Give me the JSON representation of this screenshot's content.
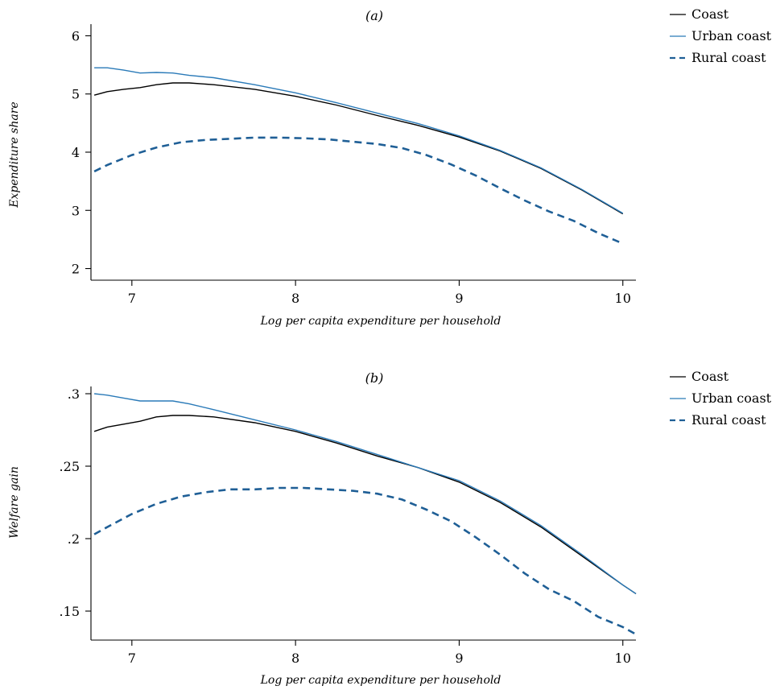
{
  "chart_data": [
    {
      "type": "line",
      "title": "(a)",
      "xlabel": "Log per capita expenditure per household",
      "ylabel": "Expenditure share",
      "xlim": [
        6.75,
        10.08
      ],
      "ylim": [
        1.8,
        6.2
      ],
      "xticks": [
        7,
        8,
        9,
        10
      ],
      "yticks": [
        2,
        3,
        4,
        5,
        6
      ],
      "ytick_labels": [
        "2",
        "3",
        "4",
        "5",
        "6"
      ],
      "grid": false,
      "legend_position": "right",
      "series": [
        {
          "name": "Coast",
          "color": "#000000",
          "style": "solid",
          "x": [
            6.77,
            6.85,
            6.95,
            7.05,
            7.15,
            7.25,
            7.35,
            7.5,
            7.75,
            8.0,
            8.25,
            8.5,
            8.75,
            9.0,
            9.25,
            9.5,
            9.75,
            10.0
          ],
          "y": [
            4.98,
            5.04,
            5.08,
            5.11,
            5.16,
            5.19,
            5.19,
            5.16,
            5.08,
            4.96,
            4.81,
            4.63,
            4.46,
            4.26,
            4.02,
            3.72,
            3.35,
            2.94
          ]
        },
        {
          "name": "Urban coast",
          "color": "#2a7ab8",
          "style": "solid",
          "x": [
            6.77,
            6.85,
            6.95,
            7.05,
            7.15,
            7.25,
            7.35,
            7.5,
            7.75,
            8.0,
            8.25,
            8.5,
            8.75,
            9.0,
            9.25,
            9.5,
            9.75,
            10.0
          ],
          "y": [
            5.45,
            5.45,
            5.41,
            5.36,
            5.37,
            5.36,
            5.32,
            5.28,
            5.16,
            5.02,
            4.85,
            4.67,
            4.49,
            4.28,
            4.03,
            3.73,
            3.36,
            2.95
          ]
        },
        {
          "name": "Rural coast",
          "color": "#1f5f96",
          "style": "dashed",
          "x": [
            6.77,
            6.85,
            7.0,
            7.15,
            7.3,
            7.45,
            7.6,
            7.75,
            7.9,
            8.05,
            8.2,
            8.35,
            8.5,
            8.65,
            8.8,
            8.95,
            9.1,
            9.25,
            9.4,
            9.55,
            9.7,
            9.85,
            10.0
          ],
          "y": [
            3.67,
            3.78,
            3.95,
            4.08,
            4.17,
            4.21,
            4.23,
            4.25,
            4.25,
            4.24,
            4.22,
            4.18,
            4.14,
            4.07,
            3.95,
            3.79,
            3.6,
            3.38,
            3.17,
            2.98,
            2.82,
            2.61,
            2.43
          ]
        }
      ]
    },
    {
      "type": "line",
      "title": "(b)",
      "xlabel": "Log per capita expenditure per household",
      "ylabel": "Welfare gain",
      "xlim": [
        6.75,
        10.08
      ],
      "ylim": [
        0.13,
        0.305
      ],
      "xticks": [
        7,
        8,
        9,
        10
      ],
      "yticks": [
        0.15,
        0.2,
        0.25,
        0.3
      ],
      "ytick_labels": [
        ".15",
        ".2",
        ".25",
        ".3"
      ],
      "grid": false,
      "legend_position": "right",
      "series": [
        {
          "name": "Coast",
          "color": "#000000",
          "style": "solid",
          "x": [
            6.77,
            6.85,
            6.95,
            7.05,
            7.15,
            7.25,
            7.35,
            7.5,
            7.75,
            8.0,
            8.25,
            8.5,
            8.75,
            9.0,
            9.25,
            9.5,
            9.75,
            10.0,
            10.08
          ],
          "y": [
            0.274,
            0.277,
            0.279,
            0.281,
            0.284,
            0.285,
            0.285,
            0.284,
            0.28,
            0.274,
            0.266,
            0.257,
            0.249,
            0.239,
            0.225,
            0.208,
            0.188,
            0.168,
            0.162
          ]
        },
        {
          "name": "Urban coast",
          "color": "#2a7ab8",
          "style": "solid",
          "x": [
            6.77,
            6.85,
            6.95,
            7.05,
            7.15,
            7.25,
            7.35,
            7.5,
            7.75,
            8.0,
            8.25,
            8.5,
            8.75,
            9.0,
            9.25,
            9.5,
            9.75,
            10.0,
            10.08
          ],
          "y": [
            0.3,
            0.299,
            0.297,
            0.295,
            0.295,
            0.295,
            0.293,
            0.289,
            0.282,
            0.275,
            0.267,
            0.258,
            0.249,
            0.24,
            0.226,
            0.209,
            0.189,
            0.168,
            0.162
          ]
        },
        {
          "name": "Rural coast",
          "color": "#1f5f96",
          "style": "dashed",
          "x": [
            6.77,
            6.85,
            7.0,
            7.15,
            7.3,
            7.45,
            7.6,
            7.75,
            7.9,
            8.05,
            8.2,
            8.35,
            8.5,
            8.65,
            8.8,
            8.95,
            9.1,
            9.25,
            9.4,
            9.55,
            9.7,
            9.85,
            10.0,
            10.08
          ],
          "y": [
            0.203,
            0.208,
            0.217,
            0.224,
            0.229,
            0.232,
            0.234,
            0.234,
            0.235,
            0.235,
            0.234,
            0.233,
            0.231,
            0.227,
            0.22,
            0.212,
            0.201,
            0.189,
            0.176,
            0.165,
            0.157,
            0.146,
            0.139,
            0.134
          ]
        }
      ]
    }
  ]
}
